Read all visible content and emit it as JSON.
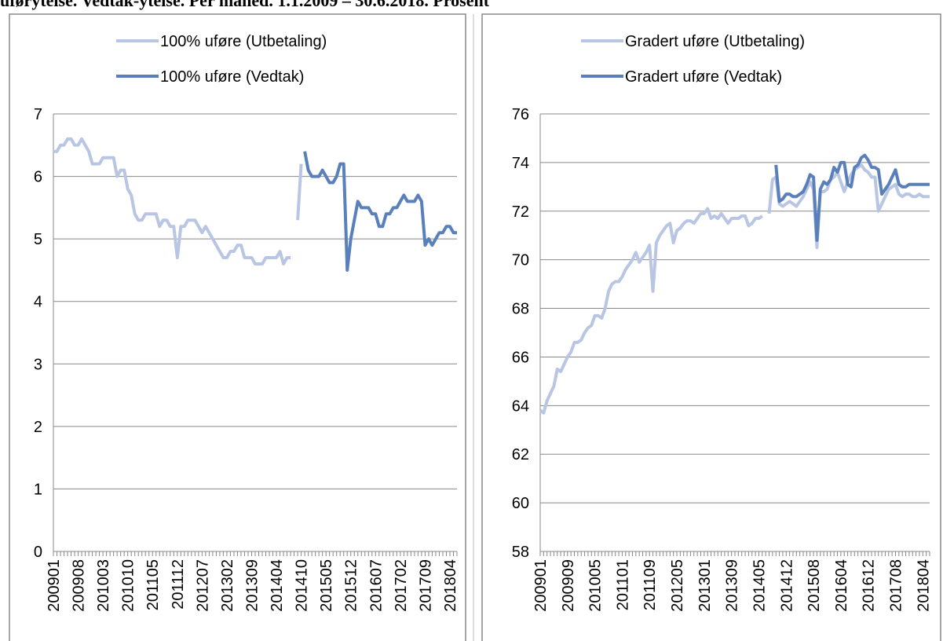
{
  "page_title": "uførytelse. Vedtak-ytelse. Per måned. 1.1.2009 – 30.6.2018. Prosent",
  "chart_data": [
    {
      "type": "line",
      "categories": [
        "200901",
        null,
        null,
        null,
        null,
        null,
        null,
        "200908",
        null,
        null,
        null,
        null,
        null,
        null,
        "201003",
        null,
        null,
        null,
        null,
        null,
        null,
        "201010",
        null,
        null,
        null,
        null,
        null,
        null,
        "201105",
        null,
        null,
        null,
        null,
        null,
        null,
        "201112",
        null,
        null,
        null,
        null,
        null,
        null,
        "201207",
        null,
        null,
        null,
        null,
        null,
        null,
        "201302",
        null,
        null,
        null,
        null,
        null,
        null,
        "201309",
        null,
        null,
        null,
        null,
        null,
        null,
        "201404",
        null,
        null,
        null,
        null,
        null,
        null,
        "201410",
        null,
        null,
        null,
        null,
        null,
        null,
        "201505",
        null,
        null,
        null,
        null,
        null,
        null,
        "201512",
        null,
        null,
        null,
        null,
        null,
        null,
        "201607",
        null,
        null,
        null,
        null,
        null,
        null,
        "201702",
        null,
        null,
        null,
        null,
        null,
        null,
        "201709",
        null,
        null,
        null,
        null,
        null,
        null,
        "201804",
        null,
        null
      ],
      "ylim": [
        0,
        7
      ],
      "yticks": [
        0,
        1,
        2,
        3,
        4,
        5,
        6,
        7
      ],
      "grid": true,
      "series": [
        {
          "name": "100% uføre (Utbetaling)",
          "color": "#b9c6e3",
          "values": [
            6.4,
            6.4,
            6.5,
            6.5,
            6.6,
            6.6,
            6.5,
            6.5,
            6.6,
            6.5,
            6.4,
            6.2,
            6.2,
            6.2,
            6.3,
            6.3,
            6.3,
            6.3,
            6.0,
            6.1,
            6.1,
            5.8,
            5.7,
            5.4,
            5.3,
            5.3,
            5.4,
            5.4,
            5.4,
            5.4,
            5.2,
            5.3,
            5.3,
            5.2,
            5.2,
            4.7,
            5.2,
            5.2,
            5.3,
            5.3,
            5.3,
            5.2,
            5.1,
            5.2,
            5.1,
            5.0,
            4.9,
            4.8,
            4.7,
            4.7,
            4.8,
            4.8,
            4.9,
            4.9,
            4.7,
            4.7,
            4.7,
            4.6,
            4.6,
            4.6,
            4.7,
            4.7,
            4.7,
            4.7,
            4.8,
            4.6,
            4.7,
            4.7,
            null,
            5.3,
            6.2,
            null,
            null,
            null,
            null,
            null,
            null,
            null,
            null,
            null,
            null,
            null,
            null,
            null,
            null,
            null,
            null,
            null,
            null,
            null,
            null,
            null,
            null,
            null,
            null,
            null,
            null,
            null,
            null,
            null,
            null,
            null,
            null,
            null,
            null,
            null,
            null,
            null,
            null,
            null,
            null,
            null,
            null,
            null,
            null
          ]
        },
        {
          "name": "100% uføre (Vedtak)",
          "color": "#5a80bb",
          "values": [
            null,
            null,
            null,
            null,
            null,
            null,
            null,
            null,
            null,
            null,
            null,
            null,
            null,
            null,
            null,
            null,
            null,
            null,
            null,
            null,
            null,
            null,
            null,
            null,
            null,
            null,
            null,
            null,
            null,
            null,
            null,
            null,
            null,
            null,
            null,
            null,
            null,
            null,
            null,
            null,
            null,
            null,
            null,
            null,
            null,
            null,
            null,
            null,
            null,
            null,
            null,
            null,
            null,
            null,
            null,
            null,
            null,
            null,
            null,
            null,
            null,
            null,
            null,
            null,
            null,
            null,
            null,
            null,
            null,
            null,
            null,
            6.4,
            6.1,
            6.0,
            6.0,
            6.0,
            6.1,
            6.0,
            5.9,
            5.9,
            6.0,
            6.2,
            6.2,
            4.5,
            5.0,
            5.3,
            5.6,
            5.5,
            5.5,
            5.5,
            5.4,
            5.4,
            5.2,
            5.2,
            5.4,
            5.4,
            5.5,
            5.5,
            5.6,
            5.7,
            5.6,
            5.6,
            5.6,
            5.7,
            5.6,
            4.9,
            5.0,
            4.9,
            5.0,
            5.1,
            5.1,
            5.2,
            5.2,
            5.1,
            5.1
          ]
        }
      ]
    },
    {
      "type": "line",
      "categories": [
        "200901",
        null,
        null,
        null,
        null,
        null,
        null,
        null,
        "200909",
        null,
        null,
        null,
        null,
        null,
        null,
        null,
        "201005",
        null,
        null,
        null,
        null,
        null,
        null,
        null,
        "201101",
        null,
        null,
        null,
        null,
        null,
        null,
        null,
        "201109",
        null,
        null,
        null,
        null,
        null,
        null,
        null,
        "201205",
        null,
        null,
        null,
        null,
        null,
        null,
        null,
        "201301",
        null,
        null,
        null,
        null,
        null,
        null,
        null,
        "201309",
        null,
        null,
        null,
        null,
        null,
        null,
        null,
        "201405",
        null,
        null,
        null,
        null,
        null,
        null,
        null,
        "201412",
        null,
        null,
        null,
        null,
        null,
        null,
        null,
        "201508",
        null,
        null,
        null,
        null,
        null,
        null,
        null,
        "201604",
        null,
        null,
        null,
        null,
        null,
        null,
        null,
        "201612",
        null,
        null,
        null,
        null,
        null,
        null,
        null,
        "201708",
        null,
        null,
        null,
        null,
        null,
        null,
        null,
        "201804",
        null,
        null
      ],
      "ylim": [
        58,
        76
      ],
      "yticks": [
        58,
        60,
        62,
        64,
        66,
        68,
        70,
        72,
        74,
        76
      ],
      "grid": true,
      "series": [
        {
          "name": "Gradert uføre (Utbetaling)",
          "color": "#b9c6e3",
          "values": [
            63.8,
            63.7,
            64.2,
            64.5,
            64.8,
            65.5,
            65.4,
            65.7,
            66.0,
            66.2,
            66.6,
            66.6,
            66.7,
            67.0,
            67.2,
            67.3,
            67.7,
            67.7,
            67.6,
            68.0,
            68.7,
            69.0,
            69.1,
            69.1,
            69.3,
            69.6,
            69.8,
            70.0,
            70.3,
            69.9,
            70.1,
            70.3,
            70.6,
            68.7,
            70.7,
            71.0,
            71.2,
            71.4,
            71.5,
            70.7,
            71.2,
            71.3,
            71.5,
            71.6,
            71.6,
            71.5,
            71.7,
            71.9,
            71.9,
            72.1,
            71.7,
            71.8,
            71.7,
            71.9,
            71.7,
            71.5,
            71.7,
            71.7,
            71.7,
            71.8,
            71.8,
            71.4,
            71.5,
            71.7,
            71.7,
            71.8,
            null,
            71.9,
            73.3,
            73.4,
            72.3,
            72.2,
            72.3,
            72.4,
            72.3,
            72.2,
            72.4,
            72.6,
            72.9,
            73.2,
            72.9,
            70.5,
            72.8,
            72.8,
            72.9,
            73.3,
            73.4,
            73.6,
            73.2,
            72.8,
            73.2,
            73.5,
            73.7,
            73.8,
            73.9,
            73.7,
            73.6,
            73.4,
            73.4,
            72.0,
            72.3,
            72.6,
            72.9,
            73.0,
            73.1,
            72.7,
            72.6,
            72.7,
            72.7,
            72.6,
            72.6,
            72.7,
            72.6,
            72.6,
            72.6
          ]
        },
        {
          "name": "Gradert uføre (Vedtak)",
          "color": "#5a80bb",
          "values": [
            null,
            null,
            null,
            null,
            null,
            null,
            null,
            null,
            null,
            null,
            null,
            null,
            null,
            null,
            null,
            null,
            null,
            null,
            null,
            null,
            null,
            null,
            null,
            null,
            null,
            null,
            null,
            null,
            null,
            null,
            null,
            null,
            null,
            null,
            null,
            null,
            null,
            null,
            null,
            null,
            null,
            null,
            null,
            null,
            null,
            null,
            null,
            null,
            null,
            null,
            null,
            null,
            null,
            null,
            null,
            null,
            null,
            null,
            null,
            null,
            null,
            null,
            null,
            null,
            null,
            null,
            null,
            null,
            null,
            73.9,
            72.4,
            72.5,
            72.7,
            72.7,
            72.6,
            72.6,
            72.7,
            72.8,
            73.1,
            73.5,
            73.4,
            70.8,
            72.9,
            73.2,
            73.1,
            73.3,
            73.8,
            73.6,
            74.0,
            74.0,
            73.1,
            73.0,
            73.8,
            73.9,
            74.2,
            74.3,
            74.1,
            73.8,
            73.8,
            73.7,
            72.7,
            72.9,
            73.1,
            73.4,
            73.7,
            73.1,
            73.0,
            73.0,
            73.1,
            73.1,
            73.1,
            73.1,
            73.1,
            73.1,
            73.1
          ]
        }
      ]
    }
  ]
}
